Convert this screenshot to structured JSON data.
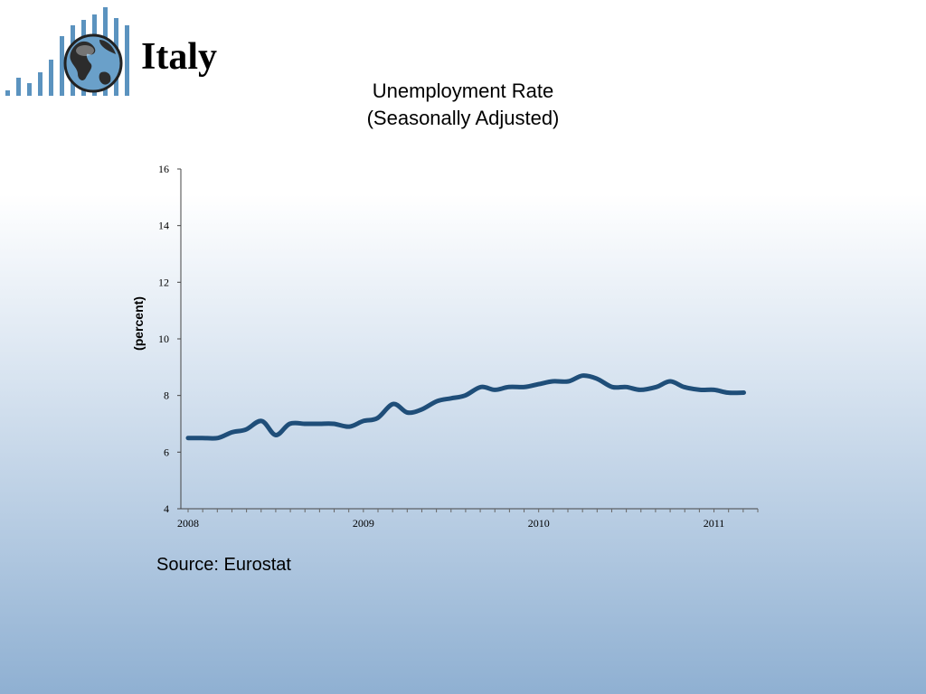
{
  "header": {
    "country": "Italy"
  },
  "logo": {
    "icon": "globe-bars-logo",
    "bar_color": "#5b93bf",
    "globe_color": "#6aa0c9"
  },
  "chart_data": {
    "type": "line",
    "title_lines": [
      "Unemployment Rate",
      "(Seasonally Adjusted)"
    ],
    "xlabel": "",
    "ylabel": "(percent)",
    "ylim": [
      4,
      16
    ],
    "yticks": [
      4,
      6,
      8,
      10,
      12,
      14,
      16
    ],
    "xlim": [
      2008,
      2011.25
    ],
    "xticks": [
      {
        "value": 2008,
        "label": "2008"
      },
      {
        "value": 2009,
        "label": "2009"
      },
      {
        "value": 2010,
        "label": "2010"
      },
      {
        "value": 2011,
        "label": "2011"
      }
    ],
    "grid": false,
    "line_color": "#1f4e79",
    "series": [
      {
        "x": [
          2008.0,
          2008.08,
          2008.17,
          2008.25,
          2008.33,
          2008.42,
          2008.5,
          2008.58,
          2008.67,
          2008.75,
          2008.83,
          2008.92,
          2009.0,
          2009.08,
          2009.17,
          2009.25,
          2009.33,
          2009.42,
          2009.5,
          2009.58,
          2009.67,
          2009.75,
          2009.83,
          2009.92,
          2010.0,
          2010.08,
          2010.17,
          2010.25,
          2010.33,
          2010.42,
          2010.5,
          2010.58,
          2010.67,
          2010.75,
          2010.83,
          2010.92,
          2011.0,
          2011.08,
          2011.17
        ],
        "values": [
          6.5,
          6.5,
          6.5,
          6.7,
          6.8,
          7.1,
          6.6,
          7.0,
          7.0,
          7.0,
          7.0,
          6.9,
          7.1,
          7.2,
          7.7,
          7.4,
          7.5,
          7.8,
          7.9,
          8.0,
          8.3,
          8.2,
          8.3,
          8.3,
          8.4,
          8.5,
          8.5,
          8.7,
          8.6,
          8.3,
          8.3,
          8.2,
          8.3,
          8.5,
          8.3,
          8.2,
          8.2,
          8.1,
          8.1
        ]
      }
    ]
  },
  "footer": {
    "source": "Source: Eurostat"
  }
}
